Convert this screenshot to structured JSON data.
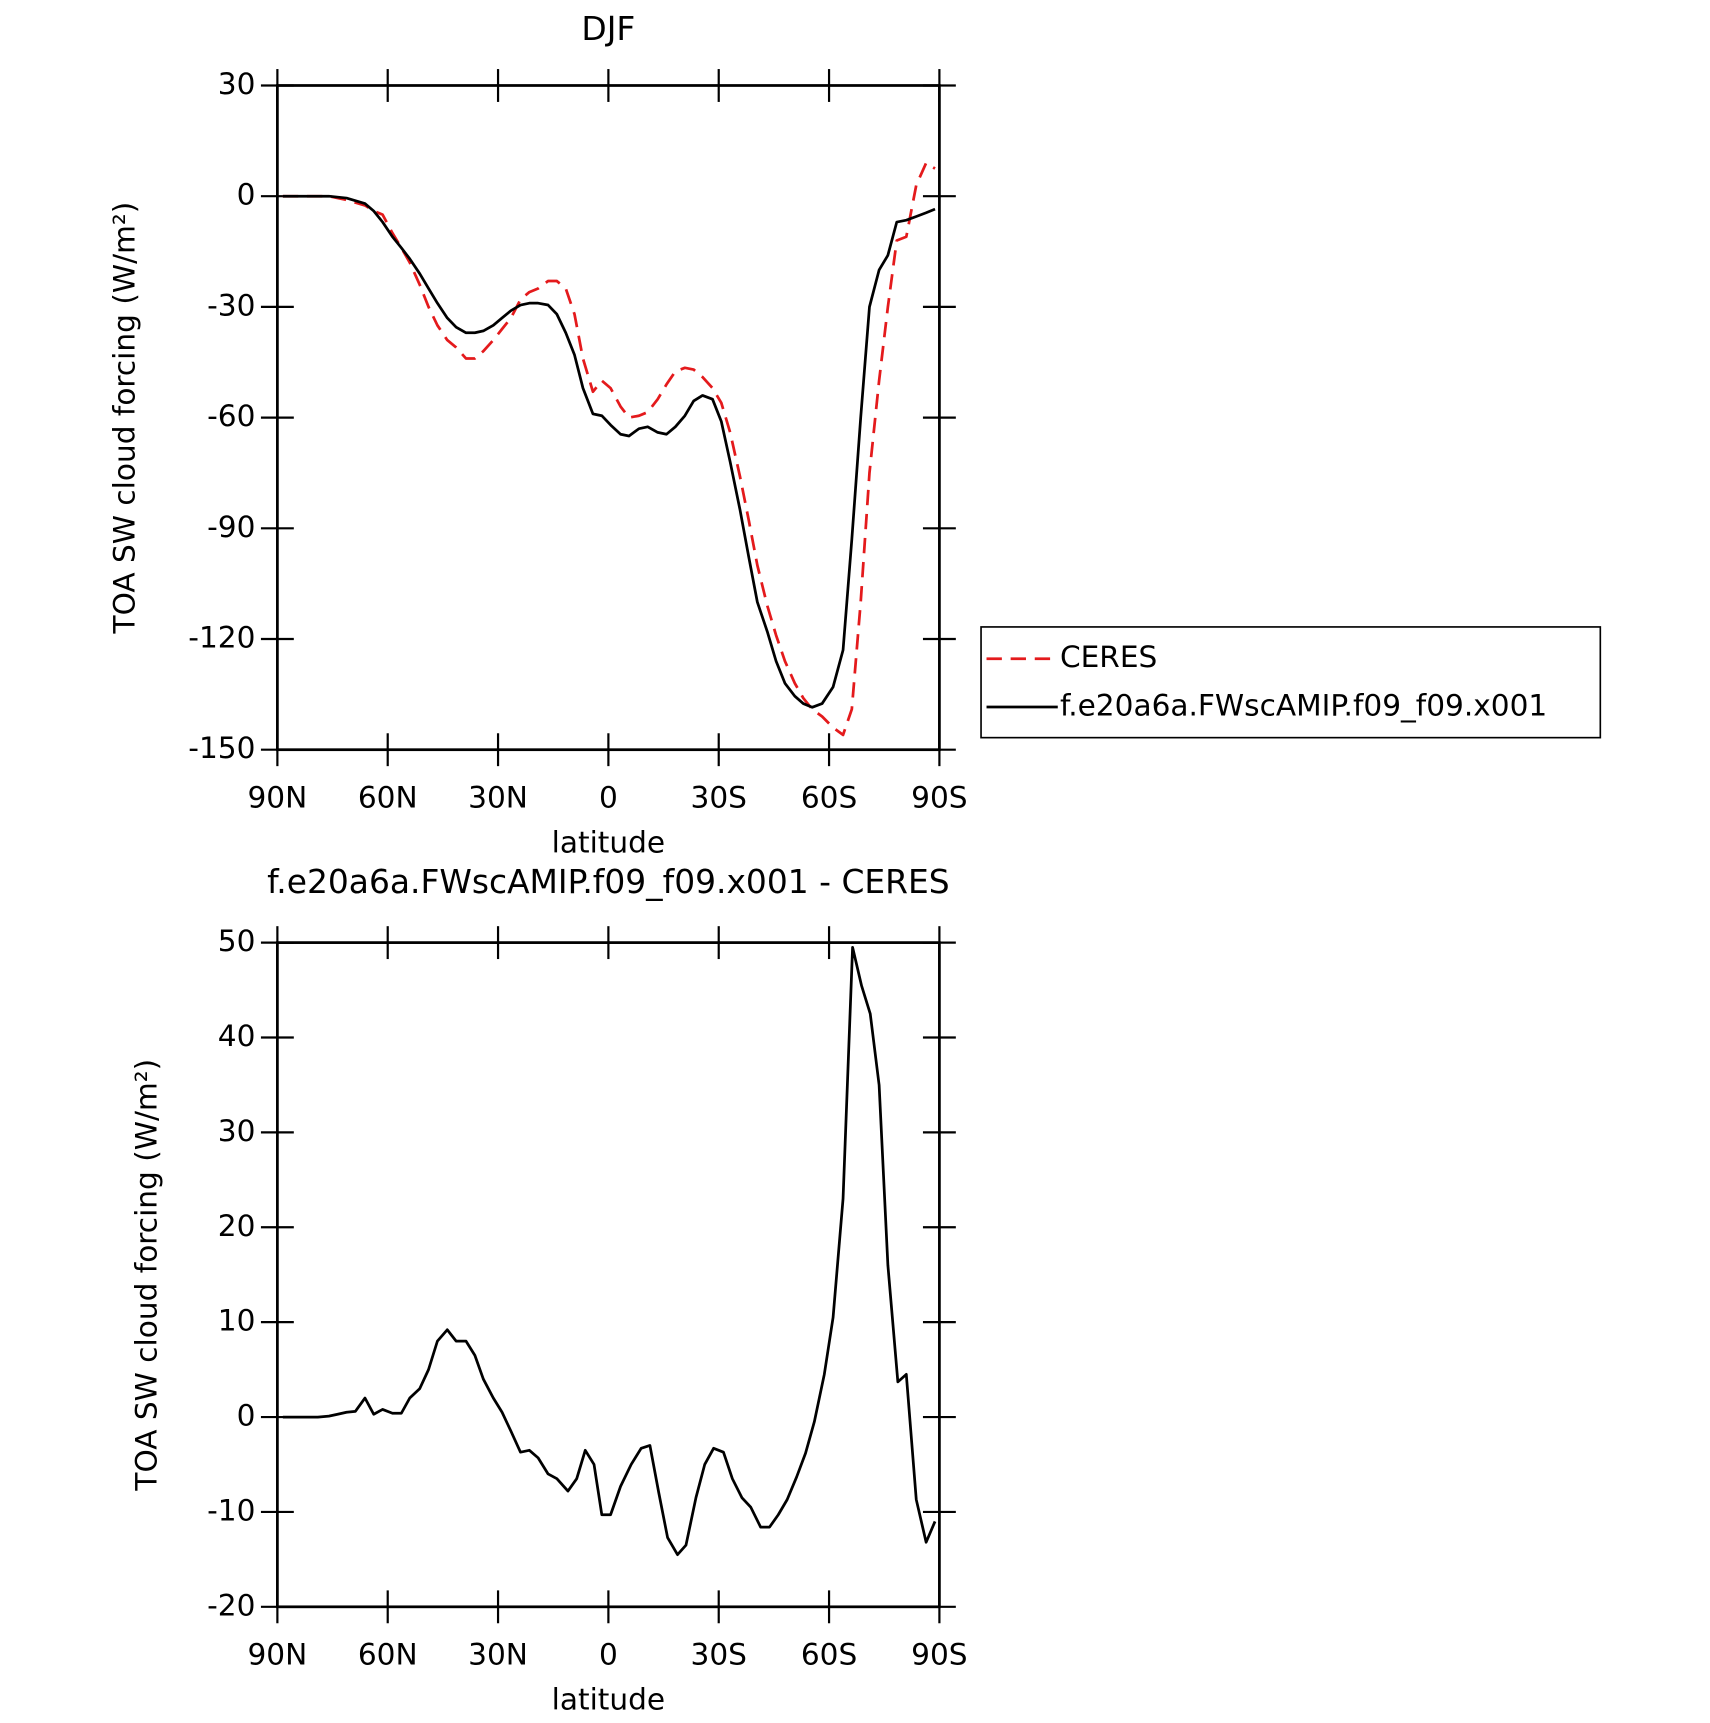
{
  "chart_data": [
    {
      "type": "line",
      "title": "DJF",
      "xlabel": "latitude",
      "ylabel": "TOA SW cloud forcing (W/m²)",
      "legend": "right",
      "x": [
        88.5,
        76,
        71.2,
        66.2,
        63.8,
        61.4,
        58.7,
        56.3,
        54,
        51.3,
        48.9,
        46.5,
        43.8,
        41.4,
        38.7,
        36.3,
        34,
        31.3,
        28.9,
        26.5,
        23.9,
        21.5,
        19.1,
        16.4,
        14,
        11.6,
        9.2,
        6.9,
        4.2,
        1.8,
        -0.6,
        -3.3,
        -5.6,
        -8.3,
        -10.7,
        -13.4,
        -15.8,
        -18.2,
        -20.8,
        -23.2,
        -25.6,
        -28.3,
        -30.7,
        -33.1,
        -35.8,
        -38.2,
        -40.5,
        -43.2,
        -45.6,
        -48,
        -50.7,
        -53,
        -55.4,
        -58.1,
        -61.1,
        -63.8,
        -66.2,
        -68.6,
        -71,
        -73.6,
        -76,
        -78.4,
        -81,
        -83.7,
        -86.4,
        -88.8
      ],
      "series": [
        {
          "name": "CERES",
          "color": "#e41a1c",
          "dashed": true,
          "values": [
            0,
            0,
            -1,
            -2.5,
            -4,
            -5,
            -10,
            -14,
            -18,
            -24,
            -30,
            -35,
            -39,
            -41,
            -44,
            -44,
            -42,
            -39,
            -36,
            -33,
            -28,
            -26,
            -25,
            -23,
            -23,
            -25,
            -32,
            -44,
            -53,
            -50,
            -52,
            -57,
            -60,
            -59.5,
            -58.5,
            -55,
            -51,
            -47.5,
            -46.5,
            -47,
            -49,
            -52,
            -56,
            -64,
            -76,
            -88,
            -100,
            -111,
            -119,
            -126,
            -132,
            -136,
            -139,
            -141,
            -144,
            -146,
            -139,
            -110,
            -75,
            -50,
            -30,
            -12,
            -11,
            3,
            9,
            7.5
          ]
        },
        {
          "name": "f.e20a6a.FWscAMIP.f09_f09.x001",
          "color": "#000000",
          "dashed": false,
          "values": [
            0,
            0,
            -0.5,
            -2,
            -4,
            -7,
            -11,
            -14,
            -17,
            -21,
            -25,
            -29,
            -33,
            -35.5,
            -37,
            -37,
            -36.5,
            -35,
            -33,
            -31,
            -29.5,
            -29,
            -29,
            -29.5,
            -32,
            -37,
            -43,
            -52,
            -59,
            -59.5,
            -62,
            -64.5,
            -65,
            -63,
            -62.5,
            -64,
            -64.5,
            -62.5,
            -59.5,
            -55.5,
            -54,
            -55,
            -61,
            -72,
            -85,
            -98,
            -110,
            -118,
            -126,
            -132,
            -135.5,
            -137.5,
            -138.5,
            -137.5,
            -133,
            -123,
            -93,
            -60,
            -30,
            -20,
            -16,
            -7,
            -6.5,
            -5.5,
            -4.5,
            -3.5
          ]
        }
      ],
      "xlim": [
        90,
        -90
      ],
      "xticks": [
        {
          "value": 90,
          "label": "90N"
        },
        {
          "value": 60,
          "label": "60N"
        },
        {
          "value": 30,
          "label": "30N"
        },
        0,
        {
          "value": -30,
          "label": "30S"
        },
        {
          "value": -60,
          "label": "60S"
        },
        {
          "value": -90,
          "label": "90S"
        }
      ],
      "ylim": [
        -150,
        30
      ],
      "yticks": [
        30,
        0,
        -30,
        -60,
        -90,
        -120,
        -150
      ]
    },
    {
      "type": "line",
      "title": "f.e20a6a.FWscAMIP.f09_f09.x001 - CERES",
      "xlabel": "latitude",
      "ylabel": "TOA SW cloud forcing (W/m²)",
      "x": [
        88.5,
        79,
        76,
        73.6,
        71.2,
        68.8,
        66.2,
        63.8,
        61.4,
        58.7,
        56.3,
        54,
        51.3,
        48.9,
        46.5,
        43.8,
        41.4,
        38.7,
        36.3,
        34,
        31.3,
        28.9,
        26.5,
        23.9,
        21.5,
        19.1,
        16.4,
        14,
        11,
        8.6,
        6.3,
        3.9,
        1.8,
        -0.6,
        -3.3,
        -6.2,
        -8.9,
        -11.3,
        -13.7,
        -16.1,
        -18.8,
        -21.1,
        -23.8,
        -26.2,
        -28.6,
        -31.3,
        -33.7,
        -36.3,
        -38.7,
        -41.4,
        -43.8,
        -46.2,
        -48.6,
        -51.2,
        -53.6,
        -56,
        -58.7,
        -61.1,
        -63.8,
        -66.4,
        -68.8,
        -71.2,
        -73.6,
        -76,
        -78.7,
        -81,
        -83.7,
        -86.4,
        -88.8
      ],
      "series": [
        {
          "color": "#000000",
          "values": [
            0,
            0,
            0.1,
            0.3,
            0.5,
            0.6,
            2,
            0.3,
            0.8,
            0.4,
            0.4,
            2,
            3,
            5,
            8,
            9.2,
            8,
            8,
            6.5,
            4,
            2,
            0.5,
            -1.5,
            -3.7,
            -3.5,
            -4.3,
            -6,
            -6.5,
            -7.8,
            -6.5,
            -3.5,
            -5,
            -10.3,
            -10.3,
            -7.3,
            -5,
            -3.3,
            -3,
            -8,
            -12.7,
            -14.5,
            -13.5,
            -8.5,
            -5,
            -3.3,
            -3.7,
            -6.5,
            -8.5,
            -9.5,
            -11.6,
            -11.6,
            -10.3,
            -8.7,
            -6.3,
            -3.8,
            -0.5,
            4.5,
            10.5,
            23,
            49.5,
            45.5,
            42.5,
            35,
            16,
            3.7,
            4.5,
            -8.7,
            -13.2,
            -11
          ]
        }
      ],
      "xlim": [
        90,
        -90
      ],
      "xticks": [
        {
          "value": 90,
          "label": "90N"
        },
        {
          "value": 60,
          "label": "60N"
        },
        {
          "value": 30,
          "label": "30N"
        },
        0,
        {
          "value": -30,
          "label": "30S"
        },
        {
          "value": -60,
          "label": "60S"
        },
        {
          "value": -90,
          "label": "90S"
        }
      ],
      "ylim": [
        -20,
        50
      ],
      "yticks": [
        50,
        40,
        30,
        20,
        10,
        0,
        -10,
        -20
      ]
    }
  ]
}
